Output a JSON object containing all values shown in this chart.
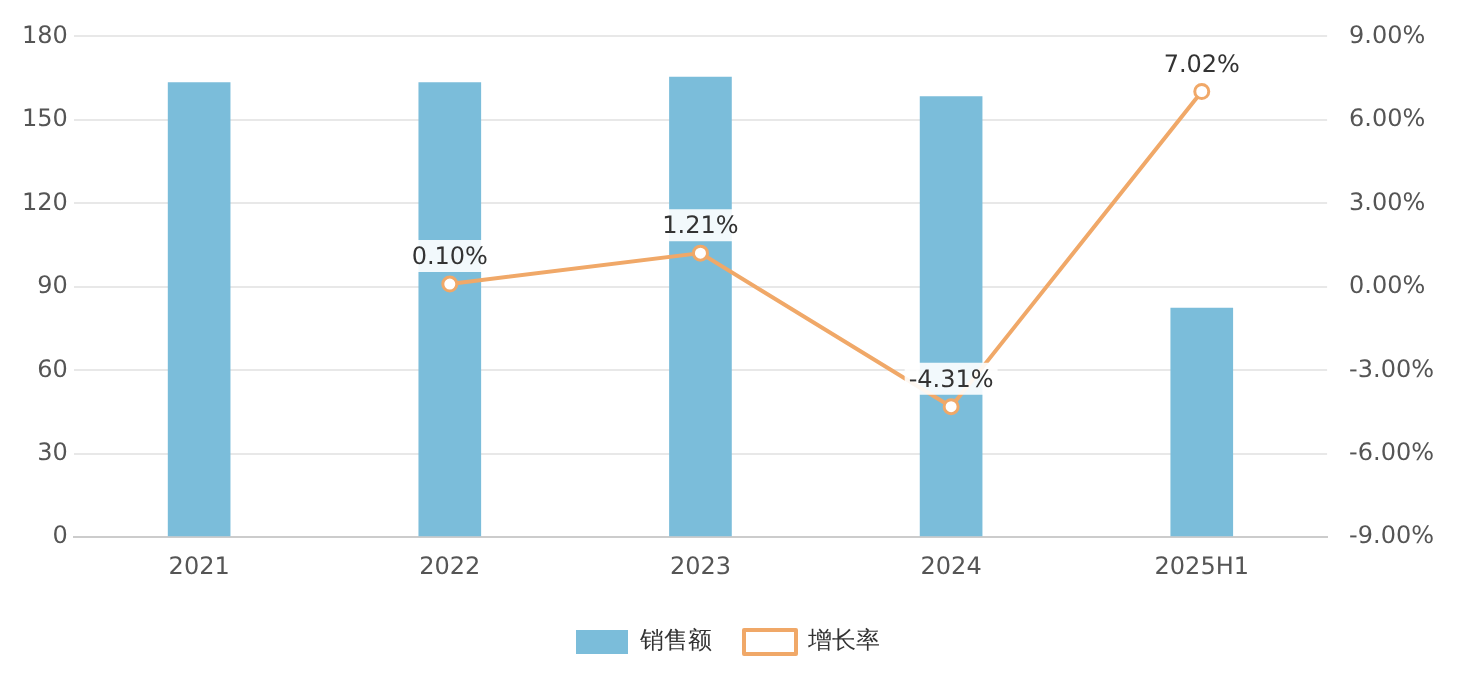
{
  "chart_data": {
    "type": "bar",
    "categories": [
      "2021",
      "2022",
      "2023",
      "2024",
      "2025H1"
    ],
    "series": [
      {
        "name": "销售额",
        "color": "#7bbdda",
        "values": [
          163.5,
          163.5,
          165.5,
          158.5,
          82.5
        ]
      },
      {
        "name": "增长率",
        "type": "line",
        "axis": "y2",
        "color": "#f0a868",
        "marker": "circle",
        "values": [
          null,
          0.1,
          1.21,
          -4.31,
          7.02
        ],
        "value_labels": [
          null,
          "0.10%",
          "1.21%",
          "-4.31%",
          "7.02%"
        ]
      }
    ],
    "ylim": [
      0,
      180
    ],
    "yticks": [
      0,
      30,
      60,
      90,
      120,
      150,
      180
    ],
    "y2lim": [
      -9,
      9
    ],
    "y2ticks": [
      {
        "value": -9,
        "label": "-9.00%"
      },
      {
        "value": -6,
        "label": "-6.00%"
      },
      {
        "value": -3,
        "label": "-3.00%"
      },
      {
        "value": 0,
        "label": "0.00%"
      },
      {
        "value": 3,
        "label": "3.00%"
      },
      {
        "value": 6,
        "label": "6.00%"
      },
      {
        "value": 9,
        "label": "9.00%"
      }
    ],
    "grid": "y",
    "legend": "bottom"
  }
}
